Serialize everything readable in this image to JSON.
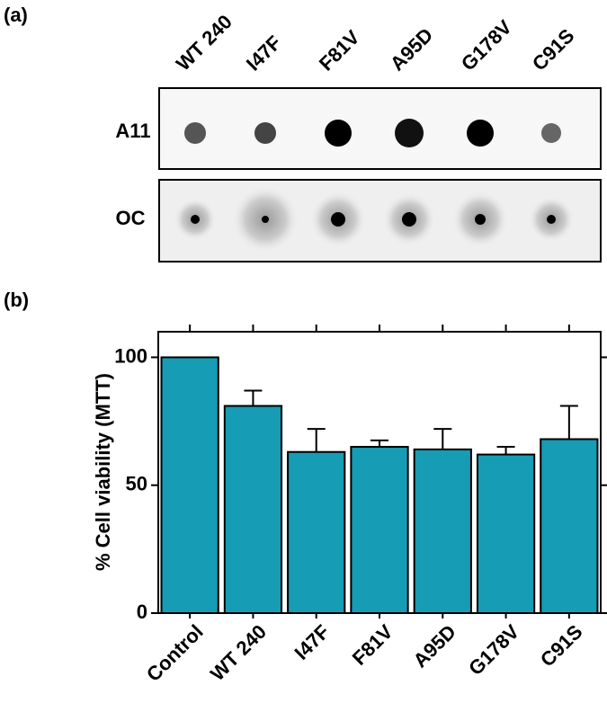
{
  "panels": [
    "(a)",
    "(b)"
  ],
  "blot": {
    "columns": [
      "WT 240",
      "I47F",
      "F81V",
      "A95D",
      "G178V",
      "C91S"
    ],
    "rows": [
      "A11",
      "OC"
    ]
  },
  "chart_data": {
    "type": "bar",
    "y_label": "% Cell viability (MTT)",
    "categories": [
      "Control",
      "WT 240",
      "I47F",
      "F81V",
      "A95D",
      "G178V",
      "C91S"
    ],
    "values": [
      100,
      81,
      63,
      65,
      64,
      62,
      68
    ],
    "errors": [
      0,
      6,
      9,
      2.5,
      8,
      3,
      13
    ],
    "color": "#169cb4",
    "ylim": [
      0,
      110
    ],
    "yticks": [
      0,
      50,
      100
    ],
    "grid": false
  }
}
